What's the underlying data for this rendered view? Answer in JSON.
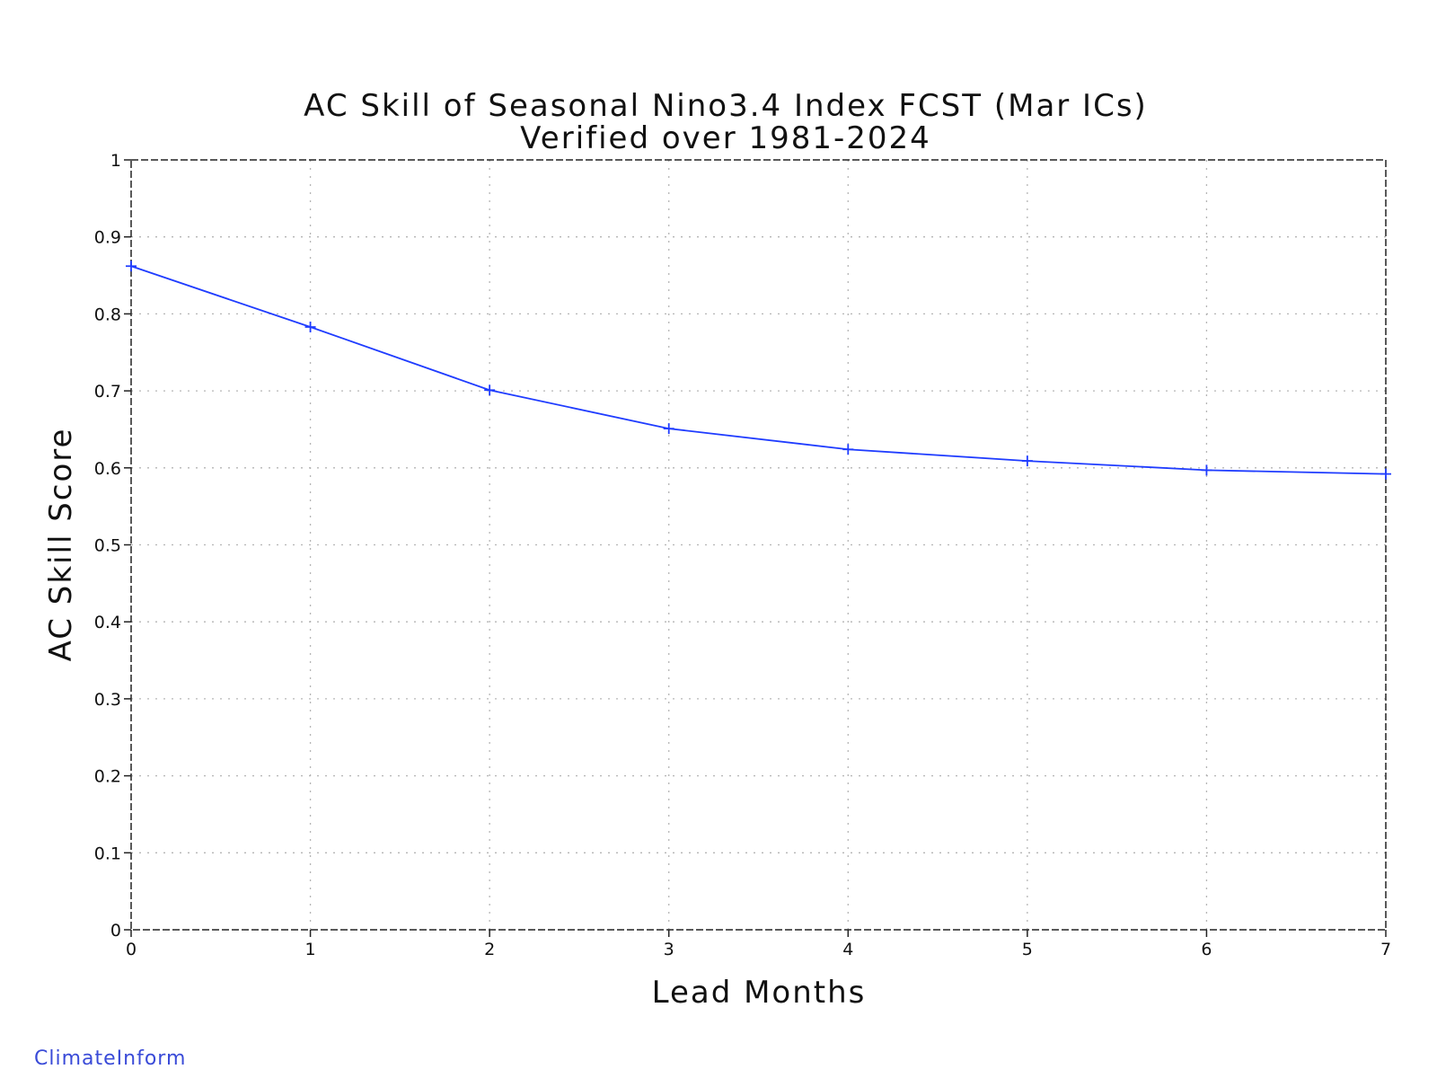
{
  "chart_data": {
    "type": "line",
    "title": "AC Skill of Seasonal Nino3.4 Index FCST (Mar ICs)",
    "subtitle": "Verified over 1981-2024",
    "xlabel": "Lead Months",
    "ylabel": "AC Skill Score",
    "xlim": [
      0,
      7
    ],
    "ylim": [
      0,
      1
    ],
    "x_ticks": [
      "0",
      "1",
      "2",
      "3",
      "4",
      "5",
      "6",
      "7"
    ],
    "y_ticks": [
      "0",
      "0.1",
      "0.2",
      "0.3",
      "0.4",
      "0.5",
      "0.6",
      "0.7",
      "0.8",
      "0.9",
      "1"
    ],
    "grid": true,
    "series": [
      {
        "color": "#1f3cff",
        "x": [
          0,
          1,
          2,
          3,
          4,
          5,
          6,
          7
        ],
        "values": [
          0.862,
          0.783,
          0.701,
          0.651,
          0.624,
          0.609,
          0.597,
          0.592
        ]
      }
    ]
  },
  "footer": {
    "brand": "ClimateInform"
  }
}
